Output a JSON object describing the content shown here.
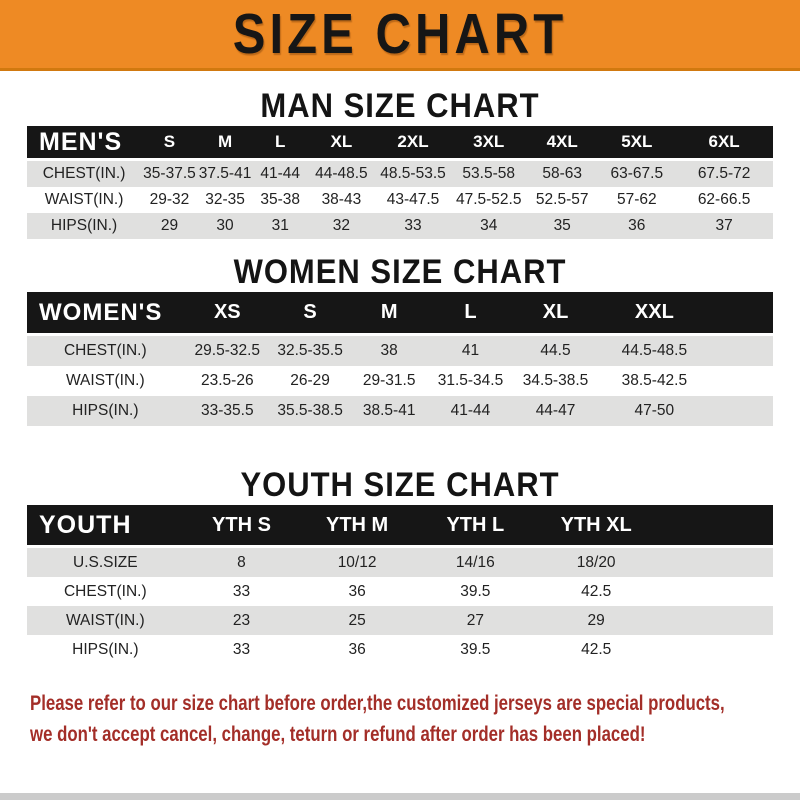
{
  "banner": {
    "title": "SIZE CHART",
    "bg_color": "#ee8a24",
    "text_color": "#161616"
  },
  "sections": [
    {
      "heading": "MAN SIZE CHART",
      "corner_label": "MEN'S",
      "columns": [
        "S",
        "M",
        "L",
        "XL",
        "2XL",
        "3XL",
        "4XL",
        "5XL",
        "6XL"
      ],
      "rows": [
        {
          "label": "CHEST(IN.)",
          "values": [
            "35-37.5",
            "37.5-41",
            "41-44",
            "44-48.5",
            "48.5-53.5",
            "53.5-58",
            "58-63",
            "63-67.5",
            "67.5-72"
          ]
        },
        {
          "label": "WAIST(IN.)",
          "values": [
            "29-32",
            "32-35",
            "35-38",
            "38-43",
            "43-47.5",
            "47.5-52.5",
            "52.5-57",
            "57-62",
            "62-66.5"
          ]
        },
        {
          "label": "HIPS(IN.)",
          "values": [
            "29",
            "30",
            "31",
            "32",
            "33",
            "34",
            "35",
            "36",
            "37"
          ]
        }
      ]
    },
    {
      "heading": "WOMEN SIZE CHART",
      "corner_label": "WOMEN'S",
      "columns": [
        "XS",
        "S",
        "M",
        "L",
        "XL",
        "XXL"
      ],
      "rows": [
        {
          "label": "CHEST(IN.)",
          "values": [
            "29.5-32.5",
            "32.5-35.5",
            "38",
            "41",
            "44.5",
            "44.5-48.5"
          ]
        },
        {
          "label": "WAIST(IN.)",
          "values": [
            "23.5-26",
            "26-29",
            "29-31.5",
            "31.5-34.5",
            "34.5-38.5",
            "38.5-42.5"
          ]
        },
        {
          "label": "HIPS(IN.)",
          "values": [
            "33-35.5",
            "35.5-38.5",
            "38.5-41",
            "41-44",
            "44-47",
            "47-50"
          ]
        }
      ]
    },
    {
      "heading": "YOUTH SIZE CHART",
      "corner_label": "YOUTH",
      "columns": [
        "YTH S",
        "YTH M",
        "YTH L",
        "YTH XL"
      ],
      "rows": [
        {
          "label": "U.S.SIZE",
          "values": [
            "8",
            "10/12",
            "14/16",
            "18/20"
          ]
        },
        {
          "label": "CHEST(IN.)",
          "values": [
            "33",
            "36",
            "39.5",
            "42.5"
          ]
        },
        {
          "label": "WAIST(IN.)",
          "values": [
            "23",
            "25",
            "27",
            "29"
          ]
        },
        {
          "label": "HIPS(IN.)",
          "values": [
            "33",
            "36",
            "39.5",
            "42.5"
          ]
        }
      ]
    }
  ],
  "footer": {
    "line1": "Please refer to our size chart before order,the customized jerseys are special products,",
    "line2": "we don't accept cancel, change, teturn or refund after order has been placed!",
    "text_color": "#a32e28"
  },
  "colors": {
    "accent_orange": "#ee8a24",
    "header_bar_black": "#161616",
    "row_stripe_gray": "#e0e0df",
    "footer_red": "#a32e28"
  }
}
